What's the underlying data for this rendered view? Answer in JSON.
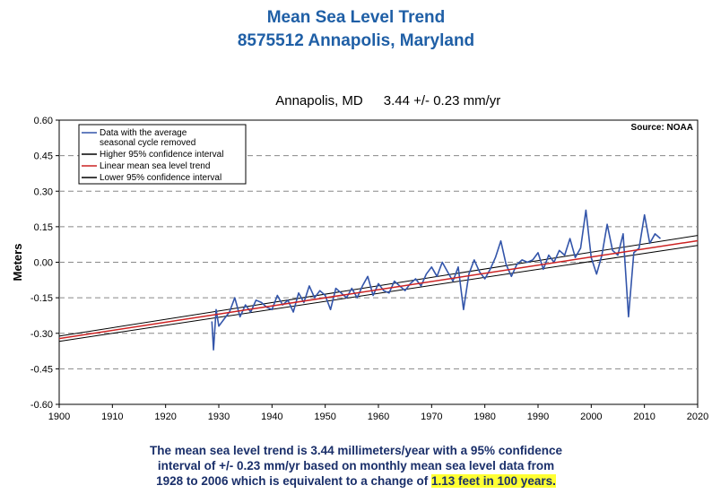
{
  "header": {
    "title": "Mean Sea Level Trend",
    "station": "8575512 Annapolis, Maryland"
  },
  "caption": {
    "line1": "The mean sea level trend is 3.44 millimeters/year with a 95% confidence",
    "line2": "interval of +/- 0.23 mm/yr based on monthly mean sea level data from",
    "line3_prefix": "1928 to 2006 which is equivalent to a change of ",
    "line3_highlight": "1.13 feet in 100 years."
  },
  "colors": {
    "title": "#1f5fa6",
    "data": "#3355aa",
    "trend": "#cc2222",
    "ci": "#000000",
    "highlight": "#ffff33",
    "caption": "#1a2f6a"
  },
  "chart_data": {
    "type": "line",
    "title": "Annapolis, MD",
    "subtitle": "3.44 +/- 0.23 mm/yr",
    "source": "Source: NOAA",
    "xlabel": "",
    "ylabel": "Meters",
    "xlim": [
      1900,
      2020
    ],
    "ylim": [
      -0.6,
      0.6
    ],
    "xticks": [
      1900,
      1910,
      1920,
      1930,
      1940,
      1950,
      1960,
      1970,
      1980,
      1990,
      2000,
      2010,
      2020
    ],
    "yticks": [
      "0.60",
      "0.45",
      "0.30",
      "0.15",
      "0.00",
      "-0.15",
      "-0.30",
      "-0.45",
      "-0.60"
    ],
    "ytick_values": [
      0.6,
      0.45,
      0.3,
      0.15,
      0.0,
      -0.15,
      -0.3,
      -0.45,
      -0.6
    ],
    "grid": "horizontal dashed",
    "legend_position": "top-left",
    "legend": [
      "Data with the average seasonal cycle removed",
      "Higher 95% confidence interval",
      "Linear mean sea level trend",
      "Lower 95% confidence interval"
    ],
    "series": [
      {
        "name": "Data with the average seasonal cycle removed",
        "x": [
          1928.7,
          1929,
          1929.5,
          1930,
          1931,
          1932,
          1933,
          1934,
          1935,
          1936,
          1937,
          1938,
          1939,
          1940,
          1941,
          1942,
          1943,
          1944,
          1945,
          1946,
          1947,
          1948,
          1949,
          1950,
          1951,
          1952,
          1953,
          1954,
          1955,
          1956,
          1957,
          1958,
          1959,
          1960,
          1961,
          1962,
          1963,
          1964,
          1965,
          1966,
          1967,
          1968,
          1969,
          1970,
          1971,
          1972,
          1973,
          1974,
          1975,
          1976,
          1977,
          1978,
          1979,
          1980,
          1981,
          1982,
          1983,
          1984,
          1985,
          1986,
          1987,
          1988,
          1989,
          1990,
          1991,
          1992,
          1993,
          1994,
          1995,
          1996,
          1997,
          1998,
          1999,
          2000,
          2001,
          2002,
          2003,
          2004,
          2005,
          2006,
          2007,
          2008,
          2009,
          2010,
          2011,
          2012,
          2013
        ],
        "y": [
          -0.25,
          -0.37,
          -0.2,
          -0.27,
          -0.24,
          -0.21,
          -0.15,
          -0.23,
          -0.18,
          -0.21,
          -0.16,
          -0.17,
          -0.19,
          -0.2,
          -0.14,
          -0.18,
          -0.16,
          -0.21,
          -0.13,
          -0.17,
          -0.1,
          -0.15,
          -0.12,
          -0.14,
          -0.2,
          -0.11,
          -0.13,
          -0.15,
          -0.11,
          -0.15,
          -0.1,
          -0.06,
          -0.14,
          -0.09,
          -0.12,
          -0.13,
          -0.08,
          -0.1,
          -0.12,
          -0.09,
          -0.07,
          -0.1,
          -0.05,
          -0.02,
          -0.06,
          0.0,
          -0.04,
          -0.08,
          -0.02,
          -0.2,
          -0.05,
          0.01,
          -0.04,
          -0.07,
          -0.03,
          0.02,
          0.09,
          -0.01,
          -0.06,
          -0.01,
          0.01,
          0.0,
          0.01,
          0.04,
          -0.03,
          0.03,
          0.0,
          0.05,
          0.03,
          0.1,
          0.02,
          0.06,
          0.22,
          0.02,
          -0.05,
          0.03,
          0.16,
          0.05,
          0.03,
          0.12,
          -0.23,
          0.04,
          0.06,
          0.2,
          0.08,
          0.12,
          0.1
        ]
      },
      {
        "name": "Higher 95% confidence interval",
        "x": [
          1900,
          2020
        ],
        "y": [
          -0.312,
          0.113
        ]
      },
      {
        "name": "Linear mean sea level trend",
        "x": [
          1900,
          2020
        ],
        "y": [
          -0.322,
          0.091
        ]
      },
      {
        "name": "Lower 95% confidence interval",
        "x": [
          1900,
          2020
        ],
        "y": [
          -0.334,
          0.071
        ]
      }
    ]
  }
}
